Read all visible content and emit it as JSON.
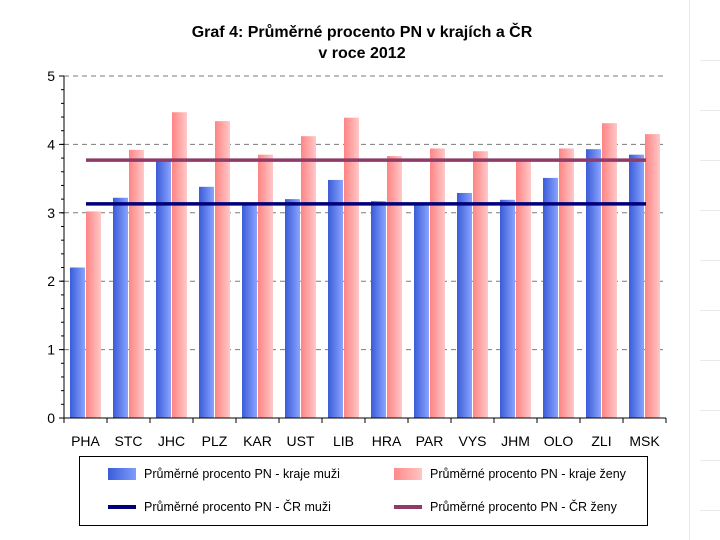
{
  "chart_data": {
    "type": "bar",
    "title_line1": "Graf 4: Průměrné procento PN v krajích a ČR",
    "title_line2": "v roce 2012",
    "categories": [
      "PHA",
      "STC",
      "JHC",
      "PLZ",
      "KAR",
      "UST",
      "LIB",
      "HRA",
      "PAR",
      "VYS",
      "JHM",
      "OLO",
      "ZLI",
      "MSK"
    ],
    "series": [
      {
        "name": "Průměrné procento PN - kraje muži",
        "color": "#5b7ff0",
        "values": [
          2.2,
          3.22,
          3.77,
          3.38,
          3.13,
          3.2,
          3.48,
          3.17,
          3.13,
          3.29,
          3.19,
          3.51,
          3.93,
          3.85
        ]
      },
      {
        "name": "Průměrné procento PN - kraje ženy",
        "color": "#ff9e9e",
        "values": [
          3.02,
          3.92,
          4.47,
          4.34,
          3.85,
          4.12,
          4.39,
          3.83,
          3.94,
          3.9,
          3.77,
          3.94,
          4.31,
          4.15
        ]
      }
    ],
    "reference_lines": [
      {
        "name": "Průměrné procento PN - ČR muži",
        "value": 3.13,
        "color": "#00007a"
      },
      {
        "name": "Průměrné procento PN - ČR ženy",
        "value": 3.77,
        "color": "#8e3b68"
      }
    ],
    "ylim": [
      0,
      5
    ],
    "yticks": [
      0,
      1,
      2,
      3,
      4,
      5
    ],
    "grid": true,
    "legend_position": "bottom"
  }
}
